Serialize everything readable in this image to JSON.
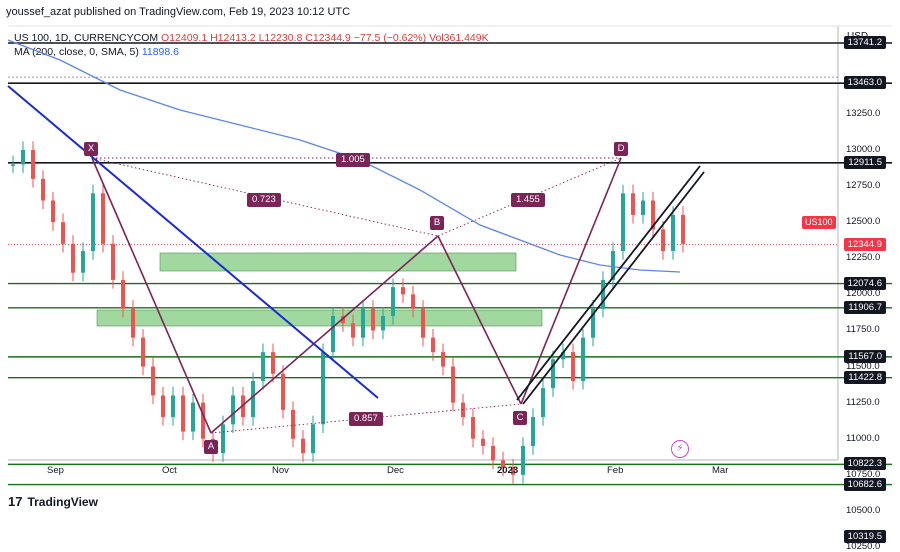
{
  "header": {
    "publisher": "youssef_azat published on TradingView.com, Feb 19, 2023 10:12 UTC"
  },
  "legend": {
    "symbol": "US 100, 1D, CURRENCYCOM",
    "open": "O12409.1",
    "high": "H12413.2",
    "low": "L12230.8",
    "close": "C12344.9",
    "change": "−77.5 (−0.62%)",
    "volume": "Vol361.449K",
    "ma_label": "MA (200, close, 0, SMA, 5)",
    "ma_value": "11898.6"
  },
  "price_axis": {
    "currency": "USD",
    "ticks": [
      "13250.0",
      "13000.0",
      "12750.0",
      "12500.0",
      "12250.0",
      "12000.0",
      "11750.0",
      "11500.0",
      "11250.0",
      "11000.0",
      "10750.0",
      "10500.0",
      "10250.0"
    ]
  },
  "price_tags": [
    "13741.2",
    "13463.0",
    "12911.5",
    "12344.9",
    "12074.6",
    "11906.7",
    "11567.0",
    "11422.8",
    "10822.3",
    "10682.6",
    "10319.5"
  ],
  "symbol_tag": "US100",
  "time_axis": [
    "Sep",
    "Oct",
    "Nov",
    "Dec",
    "2023",
    "Feb",
    "Mar"
  ],
  "pattern": {
    "points": [
      "X",
      "A",
      "B",
      "C",
      "D"
    ],
    "ratios": [
      "1.005",
      "0.723",
      "1.455",
      "0.857"
    ]
  },
  "footer": {
    "brand": "TradingView",
    "logo_glyph": "17"
  },
  "colors": {
    "pattern": "#7b2457",
    "trendline": "#1a2bd6",
    "ma": "#5b86e5",
    "zone": "#8fd18f",
    "up": "#26a69a",
    "down": "#ef5350"
  }
}
